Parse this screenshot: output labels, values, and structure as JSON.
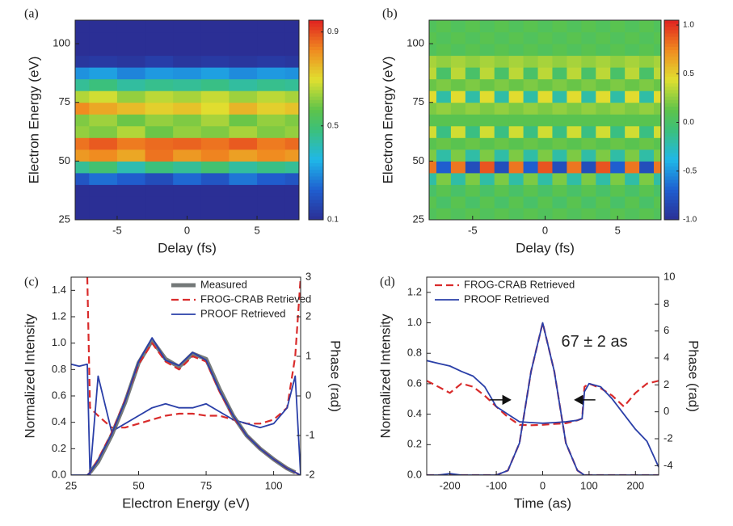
{
  "chart_data": [
    {
      "type": "heatmap",
      "label": "(a)",
      "xlabel": "Delay (fs)",
      "ylabel": "Electron Energy (eV)",
      "x": [
        -8,
        -6,
        -4,
        -2,
        0,
        2,
        4,
        6,
        8
      ],
      "y": [
        27.5,
        32.5,
        37.5,
        42.5,
        47.5,
        52.5,
        57.5,
        62.5,
        67.5,
        72.5,
        77.5,
        82.5,
        87.5,
        92.5,
        97.5,
        102.5,
        107.5
      ],
      "z": [
        [
          0.1,
          0.1,
          0.1,
          0.1,
          0.1,
          0.1,
          0.1,
          0.1,
          0.1
        ],
        [
          0.1,
          0.1,
          0.1,
          0.1,
          0.1,
          0.1,
          0.1,
          0.1,
          0.1
        ],
        [
          0.1,
          0.1,
          0.1,
          0.1,
          0.1,
          0.1,
          0.1,
          0.1,
          0.1
        ],
        [
          0.2,
          0.25,
          0.22,
          0.18,
          0.24,
          0.2,
          0.26,
          0.22,
          0.2
        ],
        [
          0.45,
          0.5,
          0.42,
          0.48,
          0.45,
          0.5,
          0.44,
          0.47,
          0.45
        ],
        [
          0.8,
          0.82,
          0.78,
          0.85,
          0.8,
          0.83,
          0.79,
          0.82,
          0.8
        ],
        [
          0.85,
          0.88,
          0.84,
          0.86,
          0.87,
          0.85,
          0.88,
          0.84,
          0.86
        ],
        [
          0.62,
          0.6,
          0.65,
          0.58,
          0.62,
          0.6,
          0.64,
          0.6,
          0.62
        ],
        [
          0.6,
          0.63,
          0.58,
          0.62,
          0.6,
          0.64,
          0.58,
          0.62,
          0.6
        ],
        [
          0.82,
          0.78,
          0.75,
          0.72,
          0.74,
          0.7,
          0.76,
          0.72,
          0.74
        ],
        [
          0.65,
          0.68,
          0.62,
          0.66,
          0.64,
          0.67,
          0.63,
          0.66,
          0.64
        ],
        [
          0.45,
          0.48,
          0.44,
          0.46,
          0.45,
          0.47,
          0.44,
          0.46,
          0.45
        ],
        [
          0.3,
          0.32,
          0.28,
          0.31,
          0.3,
          0.32,
          0.29,
          0.31,
          0.3
        ],
        [
          0.12,
          0.13,
          0.12,
          0.14,
          0.12,
          0.13,
          0.12,
          0.13,
          0.12
        ],
        [
          0.1,
          0.1,
          0.1,
          0.1,
          0.1,
          0.1,
          0.1,
          0.1,
          0.1
        ],
        [
          0.1,
          0.1,
          0.1,
          0.1,
          0.1,
          0.1,
          0.1,
          0.1,
          0.1
        ],
        [
          0.1,
          0.1,
          0.1,
          0.1,
          0.1,
          0.1,
          0.1,
          0.1,
          0.1
        ]
      ],
      "xlim": [
        -8,
        8
      ],
      "ylim": [
        25,
        110
      ],
      "xticks": [
        -5,
        0,
        5
      ],
      "yticks": [
        25,
        50,
        75,
        100
      ],
      "colorbar": {
        "lim": [
          0.1,
          0.95
        ],
        "ticks": [
          0.1,
          0.5,
          0.9
        ]
      }
    },
    {
      "type": "heatmap",
      "label": "(b)",
      "xlabel": "Delay (fs)",
      "ylabel": "Electron Energy (eV)",
      "x": [
        -8,
        -7,
        -6,
        -5,
        -4,
        -3,
        -2,
        -1,
        0,
        1,
        2,
        3,
        4,
        5,
        6,
        7,
        8
      ],
      "y": [
        27.5,
        32.5,
        37.5,
        42.5,
        47.5,
        52.5,
        57.5,
        62.5,
        67.5,
        72.5,
        77.5,
        82.5,
        87.5,
        92.5,
        97.5,
        102.5,
        107.5
      ],
      "z": [
        [
          0.05,
          0.1,
          0.05,
          0.1,
          0.05,
          0.1,
          0.05,
          0.1,
          0.05,
          0.1,
          0.05,
          0.1,
          0.05,
          0.1,
          0.05,
          0.1,
          0.05
        ],
        [
          0.1,
          0.0,
          0.1,
          0.0,
          0.1,
          0.0,
          0.1,
          0.0,
          0.1,
          0.0,
          0.1,
          0.0,
          0.1,
          0.0,
          0.1,
          0.0,
          0.1
        ],
        [
          0.0,
          0.1,
          0.0,
          0.1,
          0.0,
          0.1,
          0.0,
          0.1,
          0.0,
          0.1,
          0.0,
          0.1,
          0.0,
          0.1,
          0.0,
          0.1,
          0.0
        ],
        [
          -0.2,
          0.2,
          -0.2,
          0.2,
          -0.2,
          0.2,
          -0.2,
          0.2,
          -0.2,
          0.2,
          -0.2,
          0.2,
          -0.2,
          0.2,
          -0.2,
          0.2,
          -0.2
        ],
        [
          0.8,
          -0.7,
          0.8,
          -0.8,
          0.9,
          -0.8,
          0.8,
          -0.7,
          0.9,
          -0.8,
          0.8,
          -0.8,
          0.9,
          -0.7,
          0.8,
          -0.8,
          0.8
        ],
        [
          0.2,
          -0.2,
          0.2,
          -0.2,
          0.2,
          -0.2,
          0.2,
          -0.2,
          0.2,
          -0.2,
          0.2,
          -0.2,
          0.2,
          -0.2,
          0.2,
          -0.2,
          0.2
        ],
        [
          0.1,
          0.15,
          0.1,
          0.15,
          0.1,
          0.15,
          0.1,
          0.15,
          0.1,
          0.15,
          0.1,
          0.15,
          0.1,
          0.15,
          0.1,
          0.15,
          0.1
        ],
        [
          0.4,
          -0.1,
          0.4,
          -0.1,
          0.4,
          -0.1,
          0.4,
          -0.1,
          0.4,
          -0.1,
          0.4,
          -0.1,
          0.4,
          -0.1,
          0.4,
          -0.1,
          0.4
        ],
        [
          0.1,
          0.1,
          0.1,
          0.1,
          0.1,
          0.1,
          0.1,
          0.1,
          0.1,
          0.1,
          0.1,
          0.1,
          0.1,
          0.1,
          0.1,
          0.1,
          0.1
        ],
        [
          0.2,
          0.25,
          0.2,
          0.25,
          0.2,
          0.25,
          0.2,
          0.25,
          0.2,
          0.25,
          0.2,
          0.25,
          0.2,
          0.25,
          0.2,
          0.25,
          0.2
        ],
        [
          0.45,
          -0.2,
          0.45,
          -0.2,
          0.45,
          -0.2,
          0.45,
          -0.2,
          0.45,
          -0.2,
          0.45,
          -0.2,
          0.45,
          -0.2,
          0.45,
          -0.2,
          0.45
        ],
        [
          0.15,
          0.2,
          0.15,
          0.2,
          0.15,
          0.2,
          0.15,
          0.2,
          0.15,
          0.2,
          0.15,
          0.2,
          0.15,
          0.2,
          0.15,
          0.2,
          0.15
        ],
        [
          0.35,
          0.0,
          0.35,
          0.0,
          0.35,
          0.0,
          0.35,
          0.0,
          0.35,
          0.0,
          0.35,
          0.0,
          0.35,
          0.0,
          0.35,
          0.0,
          0.35
        ],
        [
          0.3,
          0.25,
          0.3,
          0.25,
          0.3,
          0.25,
          0.3,
          0.25,
          0.3,
          0.25,
          0.3,
          0.25,
          0.3,
          0.25,
          0.3,
          0.25,
          0.3
        ],
        [
          0.05,
          0.1,
          0.05,
          0.1,
          0.05,
          0.1,
          0.05,
          0.1,
          0.05,
          0.1,
          0.05,
          0.1,
          0.05,
          0.1,
          0.05,
          0.1,
          0.05
        ],
        [
          0.1,
          0.05,
          0.1,
          0.05,
          0.1,
          0.05,
          0.1,
          0.05,
          0.1,
          0.05,
          0.1,
          0.05,
          0.1,
          0.05,
          0.1,
          0.05,
          0.1
        ],
        [
          0.05,
          0.1,
          0.05,
          0.1,
          0.05,
          0.1,
          0.05,
          0.1,
          0.05,
          0.1,
          0.05,
          0.1,
          0.05,
          0.1,
          0.05,
          0.1,
          0.05
        ]
      ],
      "xlim": [
        -8,
        8
      ],
      "ylim": [
        25,
        110
      ],
      "xticks": [
        -5,
        0,
        5
      ],
      "yticks": [
        25,
        50,
        75,
        100
      ],
      "colorbar": {
        "lim": [
          -1,
          1.05
        ],
        "ticks": [
          {
            "value": -1,
            "label": "-1.0"
          },
          {
            "value": -0.5,
            "label": "-0.5"
          },
          {
            "value": 0,
            "label": "0.0"
          },
          {
            "value": 0.5,
            "label": "0.5"
          },
          {
            "value": 1,
            "label": "1.0"
          }
        ]
      }
    },
    {
      "type": "line",
      "label": "(c)",
      "xlabel": "Electron Energy (eV)",
      "ylabel": "Normalized Intensity",
      "y2label": "Phase (rad)",
      "x": [
        25,
        28,
        31,
        32,
        35,
        40,
        45,
        50,
        55,
        60,
        65,
        70,
        75,
        80,
        85,
        90,
        95,
        100,
        105,
        108,
        110
      ],
      "series": [
        {
          "name": "Measured",
          "color": "#666b6b",
          "style": "thick",
          "values": [
            null,
            null,
            null,
            0.02,
            0.1,
            0.3,
            0.55,
            0.85,
            1.02,
            0.88,
            0.82,
            0.92,
            0.88,
            0.65,
            0.45,
            0.3,
            0.2,
            0.12,
            0.05,
            0.02,
            null
          ]
        },
        {
          "name": "FROG-CRAB Retrieved",
          "color": "#d92b2b",
          "style": "dashed",
          "values": [
            null,
            null,
            0,
            0.02,
            0.12,
            0.32,
            0.57,
            0.84,
            1.0,
            0.86,
            0.8,
            0.9,
            0.86,
            0.63,
            0.44,
            0.3,
            0.2,
            0.12,
            0.05,
            0.02,
            0
          ]
        },
        {
          "name": "PROOF Retrieved",
          "color": "#2a3fa8",
          "style": "solid",
          "values": [
            0,
            0,
            0,
            0.02,
            0.11,
            0.31,
            0.56,
            0.86,
            1.04,
            0.87,
            0.83,
            0.93,
            0.87,
            0.64,
            0.45,
            0.3,
            0.2,
            0.12,
            0.05,
            0.02,
            0
          ]
        }
      ],
      "y2_series": [
        {
          "color": "#d92b2b",
          "style": "dashed",
          "values": [
            null,
            null,
            3,
            -0.3,
            -0.5,
            -0.8,
            -0.8,
            -0.7,
            -0.6,
            -0.5,
            -0.45,
            -0.45,
            -0.5,
            -0.5,
            -0.6,
            -0.7,
            -0.7,
            -0.6,
            -0.3,
            1.0,
            3
          ]
        },
        {
          "color": "#2a3fa8",
          "style": "solid",
          "values": [
            0.8,
            0.75,
            0.8,
            -2,
            0.5,
            -0.9,
            -0.7,
            -0.5,
            -0.3,
            -0.2,
            -0.3,
            -0.3,
            -0.2,
            -0.4,
            -0.6,
            -0.7,
            -0.8,
            -0.7,
            -0.3,
            0.5,
            -2
          ]
        }
      ],
      "xlim": [
        25,
        110
      ],
      "ylim": [
        0,
        1.5
      ],
      "y2lim": [
        -2,
        3
      ],
      "xticks": [
        25,
        50,
        75,
        100
      ],
      "yticks": [
        {
          "value": 0,
          "label": "0.0"
        },
        {
          "value": 0.2,
          "label": "0.2"
        },
        {
          "value": 0.4,
          "label": "0.4"
        },
        {
          "value": 0.6,
          "label": "0.6"
        },
        {
          "value": 0.8,
          "label": "0.8"
        },
        {
          "value": 1,
          "label": "1.0"
        },
        {
          "value": 1.2,
          "label": "1.2"
        },
        {
          "value": 1.4,
          "label": "1.4"
        }
      ],
      "y2ticks": [
        -2,
        -1,
        0,
        1,
        2,
        3
      ],
      "legend": "upper right"
    },
    {
      "type": "line",
      "label": "(d)",
      "xlabel": "Time (as)",
      "ylabel": "Normalized Intensity",
      "y2label": "Phase (rad)",
      "annotation": "67 ± 2 as",
      "x": [
        -250,
        -225,
        -200,
        -175,
        -150,
        -125,
        -100,
        -75,
        -50,
        -25,
        0,
        25,
        50,
        75,
        85,
        90,
        100,
        125,
        150,
        175,
        200,
        225,
        250
      ],
      "series": [
        {
          "name": "FROG-CRAB Retrieved",
          "color": "#d92b2b",
          "style": "dashed",
          "values": [
            0,
            0,
            0,
            0,
            0,
            0,
            0,
            0.03,
            0.21,
            0.68,
            1.0,
            0.68,
            0.21,
            0.03,
            0.01,
            0,
            0,
            0,
            0,
            0,
            0,
            0,
            0
          ]
        },
        {
          "name": "PROOF Retrieved",
          "color": "#2a3fa8",
          "style": "solid",
          "values": [
            0,
            0,
            0.01,
            0,
            0,
            0,
            0,
            0.03,
            0.21,
            0.68,
            1.0,
            0.68,
            0.21,
            0.03,
            0.01,
            0,
            0,
            0,
            0,
            0,
            0,
            0,
            0
          ]
        }
      ],
      "y2_series": [
        {
          "color": "#d92b2b",
          "style": "dashed",
          "values": [
            2.3,
            1.86,
            1.4,
            2.1,
            1.86,
            1.2,
            0.39,
            -0.4,
            -0.97,
            -1.0,
            -0.97,
            -0.9,
            -0.85,
            -0.63,
            -0.5,
            1.86,
            2.1,
            1.75,
            1.2,
            0.39,
            1.4,
            2.1,
            2.3
          ]
        },
        {
          "color": "#2a3fa8",
          "style": "solid",
          "values": [
            3.8,
            3.6,
            3.4,
            3.0,
            2.65,
            1.86,
            0.39,
            -0.18,
            -0.74,
            -0.8,
            -0.85,
            -0.8,
            -0.74,
            -0.63,
            -0.5,
            1.5,
            2.1,
            1.86,
            0.95,
            -0.18,
            -1.3,
            -2.2,
            -4.1
          ]
        }
      ],
      "xlim": [
        -250,
        250
      ],
      "ylim": [
        0,
        1.3
      ],
      "y2lim": [
        -4.7,
        10
      ],
      "xticks": [
        -200,
        -100,
        0,
        100,
        200
      ],
      "yticks": [
        {
          "value": 0,
          "label": "0.0"
        },
        {
          "value": 0.2,
          "label": "0.2"
        },
        {
          "value": 0.4,
          "label": "0.4"
        },
        {
          "value": 0.6,
          "label": "0.6"
        },
        {
          "value": 0.8,
          "label": "0.8"
        },
        {
          "value": 1,
          "label": "1.0"
        },
        {
          "value": 1.2,
          "label": "1.2"
        }
      ],
      "y2ticks": [
        -4,
        -2,
        0,
        2,
        4,
        6,
        8,
        10
      ],
      "legend": "upper left"
    }
  ]
}
